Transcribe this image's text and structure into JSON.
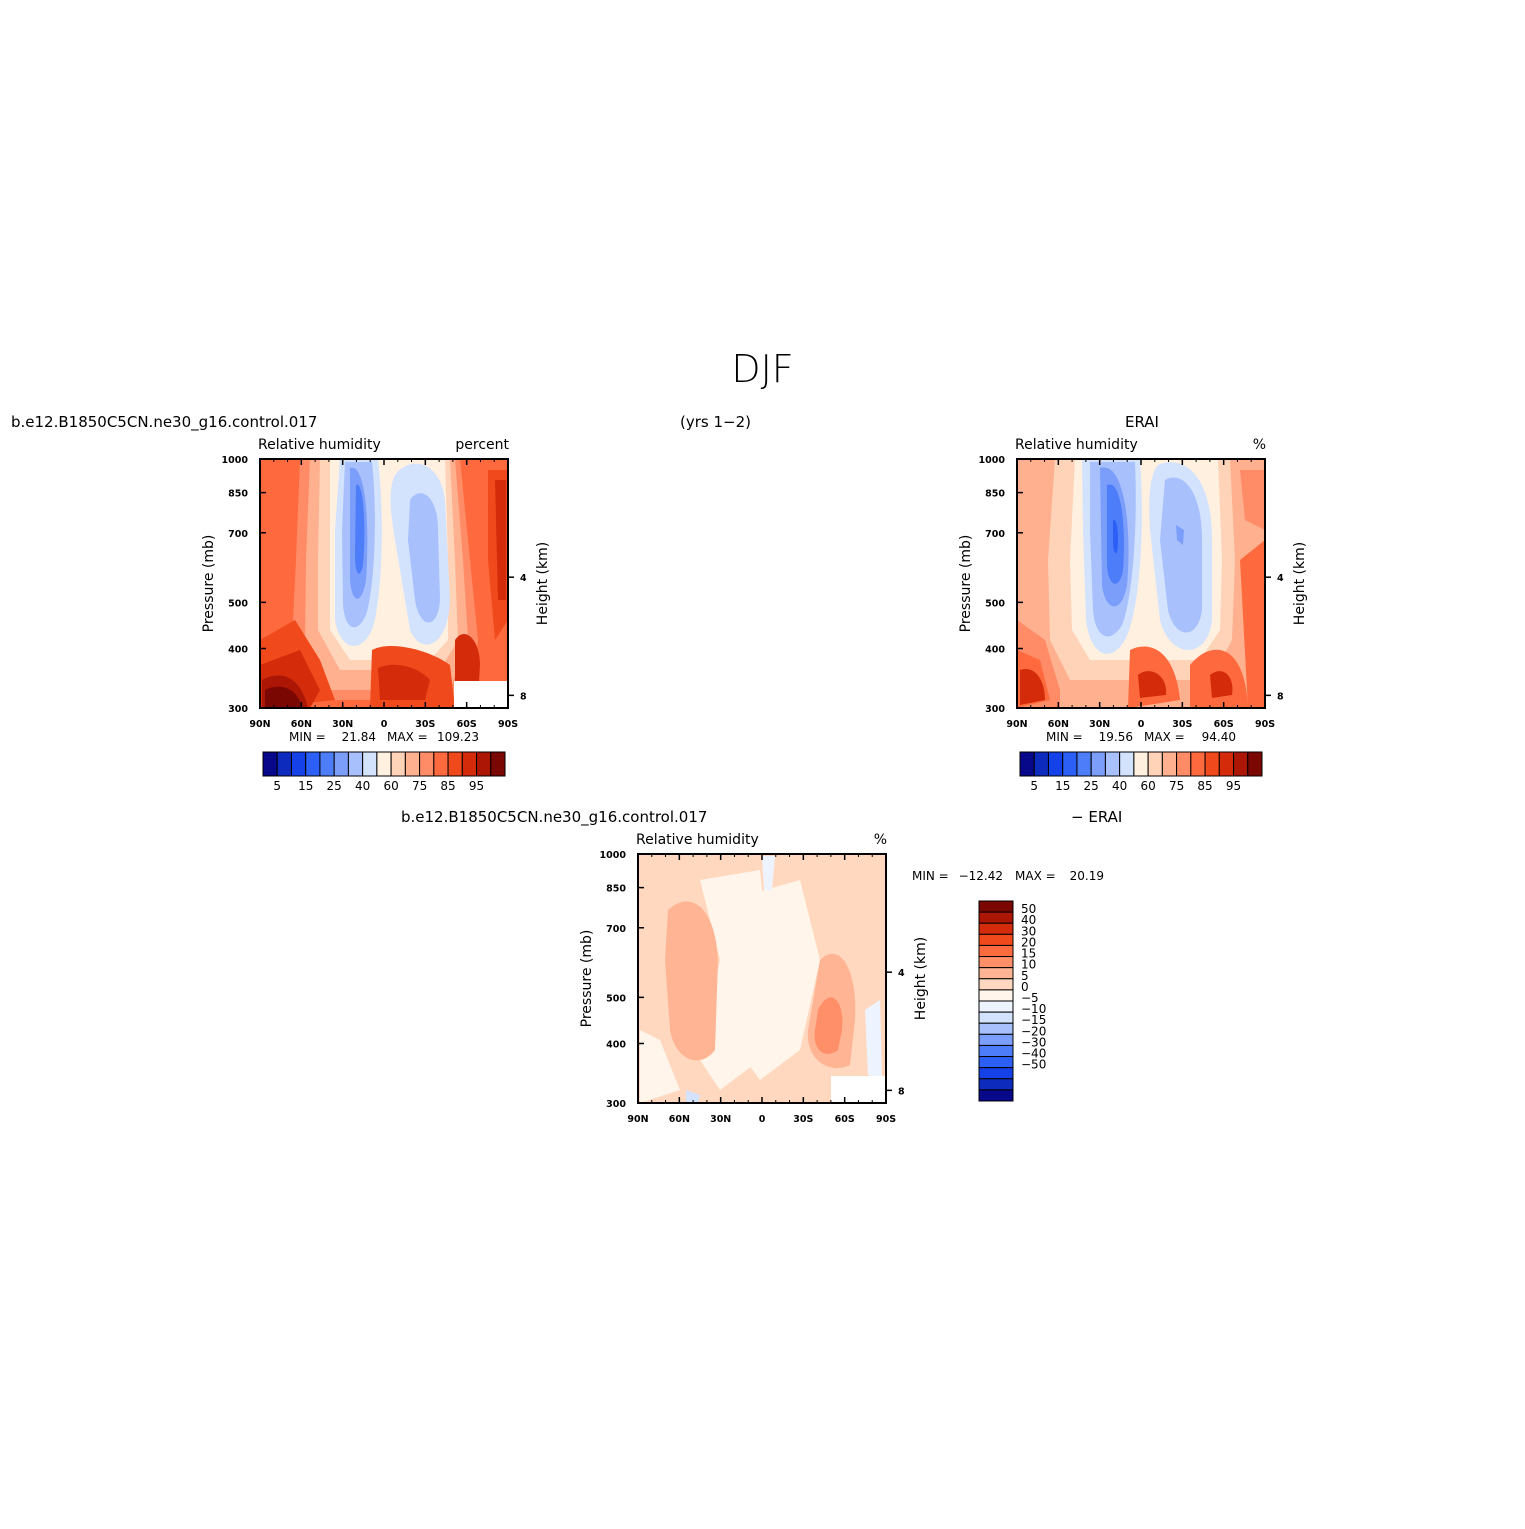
{
  "figure": {
    "title": "DJF",
    "header_left": "b.e12.B1850C5CN.ne30_g16.control.017",
    "header_center": "(yrs 1−2)",
    "header_right": "ERAI"
  },
  "colors": {
    "rh_scale": [
      "#08088a",
      "#0d2bbd",
      "#1541e8",
      "#2c5ff5",
      "#4e7df9",
      "#7b9efb",
      "#a8c0fc",
      "#d3e2fd",
      "#fff0e0",
      "#ffd3b8",
      "#ffb08f",
      "#ff8c66",
      "#fe6a3d",
      "#f04a1c",
      "#d42c0a",
      "#ac1604",
      "#7a0702"
    ],
    "diff_scale": [
      "#08088a",
      "#0d2bbd",
      "#1541e8",
      "#2c5ff5",
      "#4e7df9",
      "#7b9efb",
      "#a8c0fc",
      "#d3e2fd",
      "#eef4ff",
      "#fff5ea",
      "#ffd8bf",
      "#ffb594",
      "#ff8f68",
      "#fe6b3e",
      "#f04a1c",
      "#d42c0a",
      "#ac1604",
      "#7a0702"
    ]
  },
  "chart_data": [
    {
      "type": "heatmap",
      "panel": "model",
      "title_left": "Relative humidity",
      "title_right": "percent",
      "ylabel": "Pressure (mb)",
      "ylabel_right": "Height (km)",
      "x_ticks": [
        "90N",
        "60N",
        "30N",
        "0",
        "30S",
        "60S",
        "90S"
      ],
      "y_ticks": [
        "300",
        "400",
        "500",
        "700",
        "850",
        "1000"
      ],
      "y_ticks_right": [
        "8",
        "4"
      ],
      "min_label": "MIN =",
      "min_value": "21.84",
      "max_label": "MAX =",
      "max_value": "109.23",
      "colorbar_labels": [
        "5",
        "15",
        "25",
        "40",
        "60",
        "75",
        "85",
        "95"
      ],
      "ylim": [
        1000,
        300
      ],
      "xlim": [
        90,
        -90
      ]
    },
    {
      "type": "heatmap",
      "panel": "ERAI",
      "title_left": "Relative humidity",
      "title_right": "%",
      "ylabel": "Pressure (mb)",
      "ylabel_right": "Height (km)",
      "x_ticks": [
        "90N",
        "60N",
        "30N",
        "0",
        "30S",
        "60S",
        "90S"
      ],
      "y_ticks": [
        "300",
        "400",
        "500",
        "700",
        "850",
        "1000"
      ],
      "y_ticks_right": [
        "8",
        "4"
      ],
      "min_label": "MIN =",
      "min_value": "19.56",
      "max_label": "MAX =",
      "max_value": "94.40",
      "colorbar_labels": [
        "5",
        "15",
        "25",
        "40",
        "60",
        "75",
        "85",
        "95"
      ],
      "ylim": [
        1000,
        300
      ],
      "xlim": [
        90,
        -90
      ]
    },
    {
      "type": "heatmap",
      "panel": "difference",
      "header_left": "b.e12.B1850C5CN.ne30_g16.control.017",
      "header_right": "− ERAI",
      "title_left": "Relative humidity",
      "title_right": "%",
      "ylabel": "Pressure (mb)",
      "ylabel_right": "Height (km)",
      "x_ticks": [
        "90N",
        "60N",
        "30N",
        "0",
        "30S",
        "60S",
        "90S"
      ],
      "y_ticks": [
        "300",
        "400",
        "500",
        "700",
        "850",
        "1000"
      ],
      "y_ticks_right": [
        "8",
        "4"
      ],
      "min_label": "MIN =",
      "min_value": "−12.42",
      "max_label": "MAX =",
      "max_value": "20.19",
      "colorbar_labels": [
        "50",
        "40",
        "30",
        "20",
        "15",
        "10",
        "5",
        "0",
        "−5",
        "−10",
        "−15",
        "−20",
        "−30",
        "−40",
        "−50"
      ],
      "ylim": [
        1000,
        300
      ],
      "xlim": [
        90,
        -90
      ]
    }
  ]
}
